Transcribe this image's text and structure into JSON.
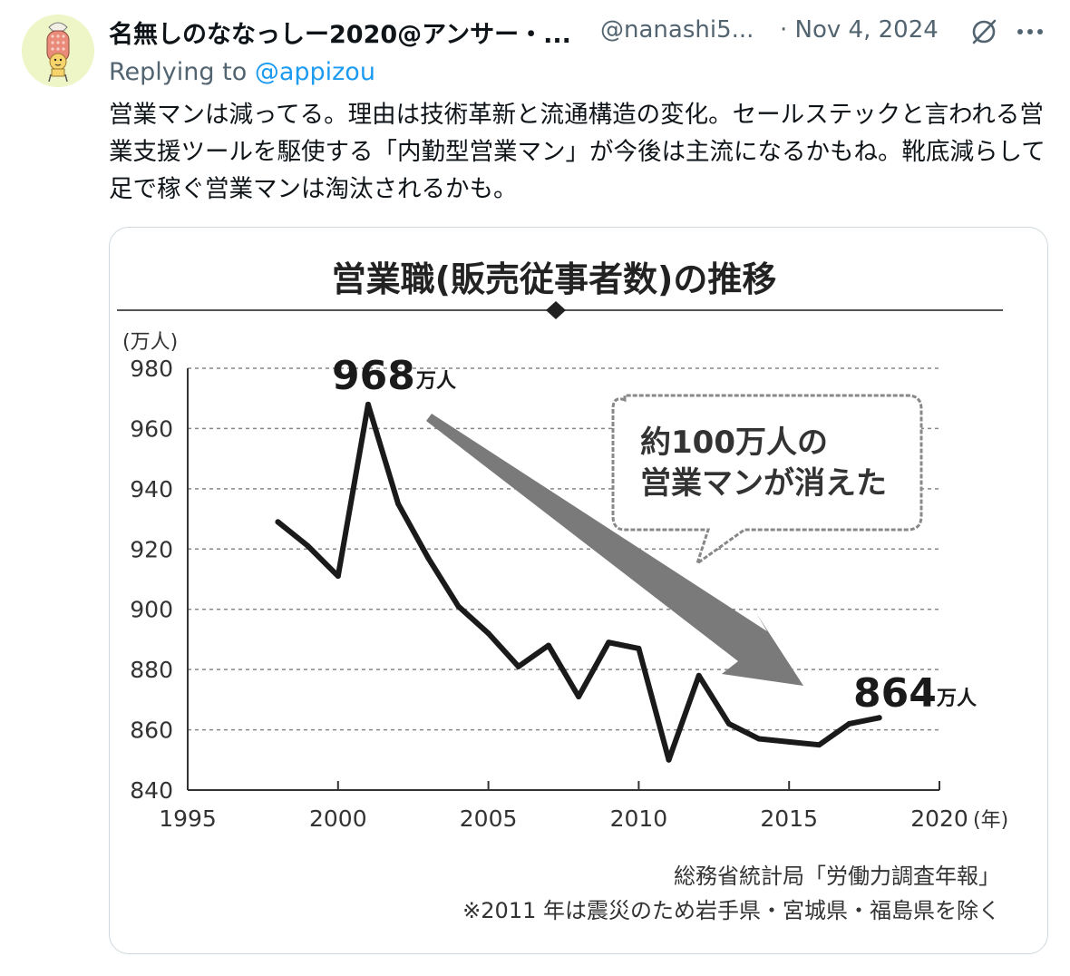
{
  "tweet": {
    "author_name": "名無しのななっしー2020@アンサー・...",
    "author_handle": "@nanashi5...",
    "timestamp": "· Nov 4, 2024",
    "reply_prefix": "Replying to ",
    "reply_to": "@appizou",
    "text": "営業マンは減ってる。理由は技術革新と流通構造の変化。セールステックと言われる営業支援ツールを駆使する「内勤型営業マン」が今後は主流になるかもね。靴底減らして足で稼ぐ営業マンは淘汰されるかも。",
    "icons": [
      "avatar",
      "grok-icon",
      "more-icon"
    ]
  },
  "chart_data": {
    "type": "line",
    "title": "営業職(販売従事者数)の推移",
    "ylabel": "(万人)",
    "xlabel": "(年)",
    "xlim": [
      1995,
      2020
    ],
    "ylim": [
      840,
      980
    ],
    "x_ticks": [
      1995,
      2000,
      2005,
      2010,
      2015,
      2020
    ],
    "y_ticks": [
      840,
      860,
      880,
      900,
      920,
      940,
      960,
      980
    ],
    "x": [
      1998,
      1999,
      2000,
      2001,
      2002,
      2003,
      2004,
      2005,
      2006,
      2007,
      2008,
      2009,
      2010,
      2011,
      2012,
      2013,
      2014,
      2015,
      2016,
      2017,
      2018
    ],
    "values": [
      929,
      921,
      911,
      968,
      935,
      917,
      901,
      892,
      881,
      888,
      871,
      889,
      887,
      850,
      878,
      862,
      857,
      856,
      855,
      862,
      864
    ],
    "annotations": {
      "peak_value": "968",
      "peak_unit": "万人",
      "last_value": "864",
      "last_unit": "万人",
      "bubble_line1": "約100万人の",
      "bubble_line2": "営業マンが消えた"
    },
    "source": "総務省統計局「労働力調査年報」",
    "note": "※2011 年は震災のため岩手県・宮城県・福島県を除く",
    "grid": true
  }
}
